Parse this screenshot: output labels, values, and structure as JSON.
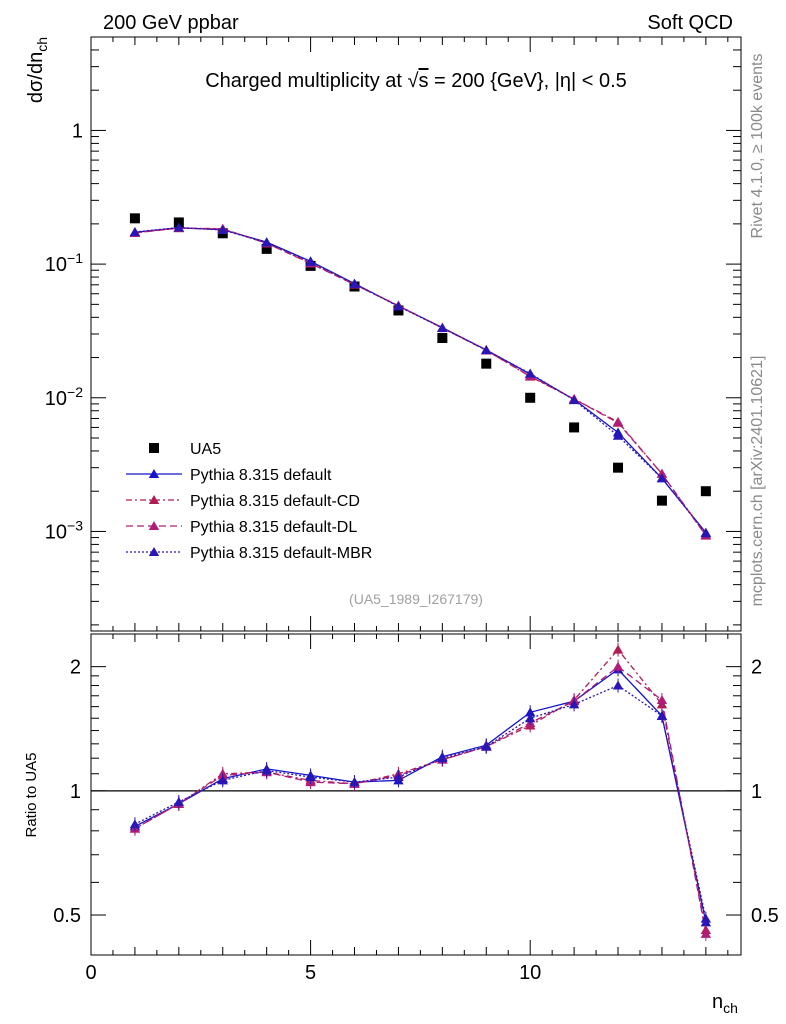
{
  "header": {
    "left": "200 GeV ppbar",
    "right": "Soft QCD"
  },
  "side_texts": {
    "rivet": "Rivet 4.1.0, ≥ 100k events",
    "mcplots": "mcplots.cern.ch [arXiv:2401.10621]"
  },
  "chart_data": [
    {
      "type": "scatter",
      "panel": "main",
      "title": "Charged multiplicity at √s = 200 {GeV}, |η| < 0.5",
      "title_parts": {
        "pre": "Charged multiplicity at ",
        "sqrt": "√",
        "s": "s",
        "post": " = 200 {GeV}, |η| < 0.5"
      },
      "ylabel": "dσ/dn_ch",
      "ylabel_parts": {
        "main": "dσ/dn",
        "sub": "ch"
      },
      "yscale": "log",
      "ylim": [
        0.00018,
        5.0
      ],
      "xlim": [
        0,
        14.8
      ],
      "y_ticks": [
        {
          "value": 1,
          "label": "1"
        },
        {
          "value": 0.1,
          "base": "10",
          "exp": "−1"
        },
        {
          "value": 0.01,
          "base": "10",
          "exp": "−2"
        },
        {
          "value": 0.001,
          "base": "10",
          "exp": "−3"
        }
      ],
      "watermark": "(UA5_1989_I267179)",
      "legend_position": "bottom-left",
      "x": [
        1,
        2,
        3,
        4,
        5,
        6,
        7,
        8,
        9,
        10,
        11,
        12,
        13,
        14
      ],
      "series": [
        {
          "name": "UA5",
          "style": "data",
          "color": "#000000",
          "values": [
            0.22,
            0.205,
            0.17,
            0.13,
            0.097,
            0.068,
            0.045,
            0.028,
            0.018,
            0.01,
            0.006,
            0.003,
            0.0017,
            0.002
          ]
        },
        {
          "name": "Pythia 8.315 default",
          "style": "solid",
          "color": "#1515c8",
          "values": [
            0.173,
            0.187,
            0.181,
            0.146,
            0.105,
            0.0715,
            0.0485,
            0.0335,
            0.0228,
            0.015,
            0.0097,
            0.0055,
            0.0025,
            0.00098
          ]
        },
        {
          "name": "Pythia 8.315 default-CD",
          "style": "dashdot",
          "color": "#b01c54",
          "values": [
            0.172,
            0.186,
            0.184,
            0.143,
            0.102,
            0.0705,
            0.049,
            0.0333,
            0.0227,
            0.0144,
            0.0098,
            0.0066,
            0.0027,
            0.00094
          ]
        },
        {
          "name": "Pythia 8.315 default-DL",
          "style": "dashed",
          "color": "#b01c78",
          "values": [
            0.171,
            0.186,
            0.183,
            0.143,
            0.101,
            0.0703,
            0.0488,
            0.0332,
            0.0226,
            0.0145,
            0.0098,
            0.0065,
            0.0027,
            0.00093
          ]
        },
        {
          "name": "Pythia 8.315 default-MBR",
          "style": "dotted",
          "color": "#2a16b4",
          "values": [
            0.174,
            0.188,
            0.18,
            0.145,
            0.104,
            0.0712,
            0.0483,
            0.0333,
            0.0227,
            0.0152,
            0.0096,
            0.0052,
            0.0025,
            0.00097
          ]
        }
      ]
    },
    {
      "type": "line",
      "panel": "ratio",
      "ylabel": "Ratio to UA5",
      "xlabel": "n_ch",
      "xlabel_parts": {
        "main": "n",
        "sub": "ch"
      },
      "yscale": "log",
      "ylim": [
        0.4,
        2.4
      ],
      "xlim": [
        0,
        14.8
      ],
      "y_ticks": [
        {
          "value": 0.5,
          "label": "0.5"
        },
        {
          "value": 1,
          "label": "1"
        },
        {
          "value": 2,
          "label": "2"
        }
      ],
      "x_ticks": [
        {
          "value": 0,
          "label": "0"
        },
        {
          "value": 5,
          "label": "5"
        },
        {
          "value": 10,
          "label": "10"
        }
      ],
      "reference_line": 1,
      "x": [
        1,
        2,
        3,
        4,
        5,
        6,
        7,
        8,
        9,
        10,
        11,
        12,
        13,
        14
      ],
      "series": [
        {
          "name": "Pythia 8.315 default",
          "style": "solid",
          "color": "#1515c8",
          "values": [
            0.82,
            0.93,
            1.07,
            1.13,
            1.09,
            1.05,
            1.06,
            1.21,
            1.29,
            1.55,
            1.65,
            1.97,
            1.52,
            0.48
          ]
        },
        {
          "name": "Pythia 8.315 default-CD",
          "style": "dashdot",
          "color": "#b01c54",
          "values": [
            0.81,
            0.93,
            1.1,
            1.11,
            1.06,
            1.04,
            1.1,
            1.19,
            1.28,
            1.44,
            1.66,
            2.2,
            1.62,
            0.46
          ]
        },
        {
          "name": "Pythia 8.315 default-DL",
          "style": "dashed",
          "color": "#b01c78",
          "values": [
            0.81,
            0.93,
            1.09,
            1.11,
            1.05,
            1.04,
            1.09,
            1.19,
            1.28,
            1.46,
            1.65,
            2.0,
            1.66,
            0.45
          ]
        },
        {
          "name": "Pythia 8.315 default-MBR",
          "style": "dotted",
          "color": "#2a16b4",
          "values": [
            0.83,
            0.94,
            1.06,
            1.12,
            1.08,
            1.05,
            1.08,
            1.2,
            1.28,
            1.5,
            1.62,
            1.8,
            1.52,
            0.49
          ]
        }
      ]
    }
  ]
}
